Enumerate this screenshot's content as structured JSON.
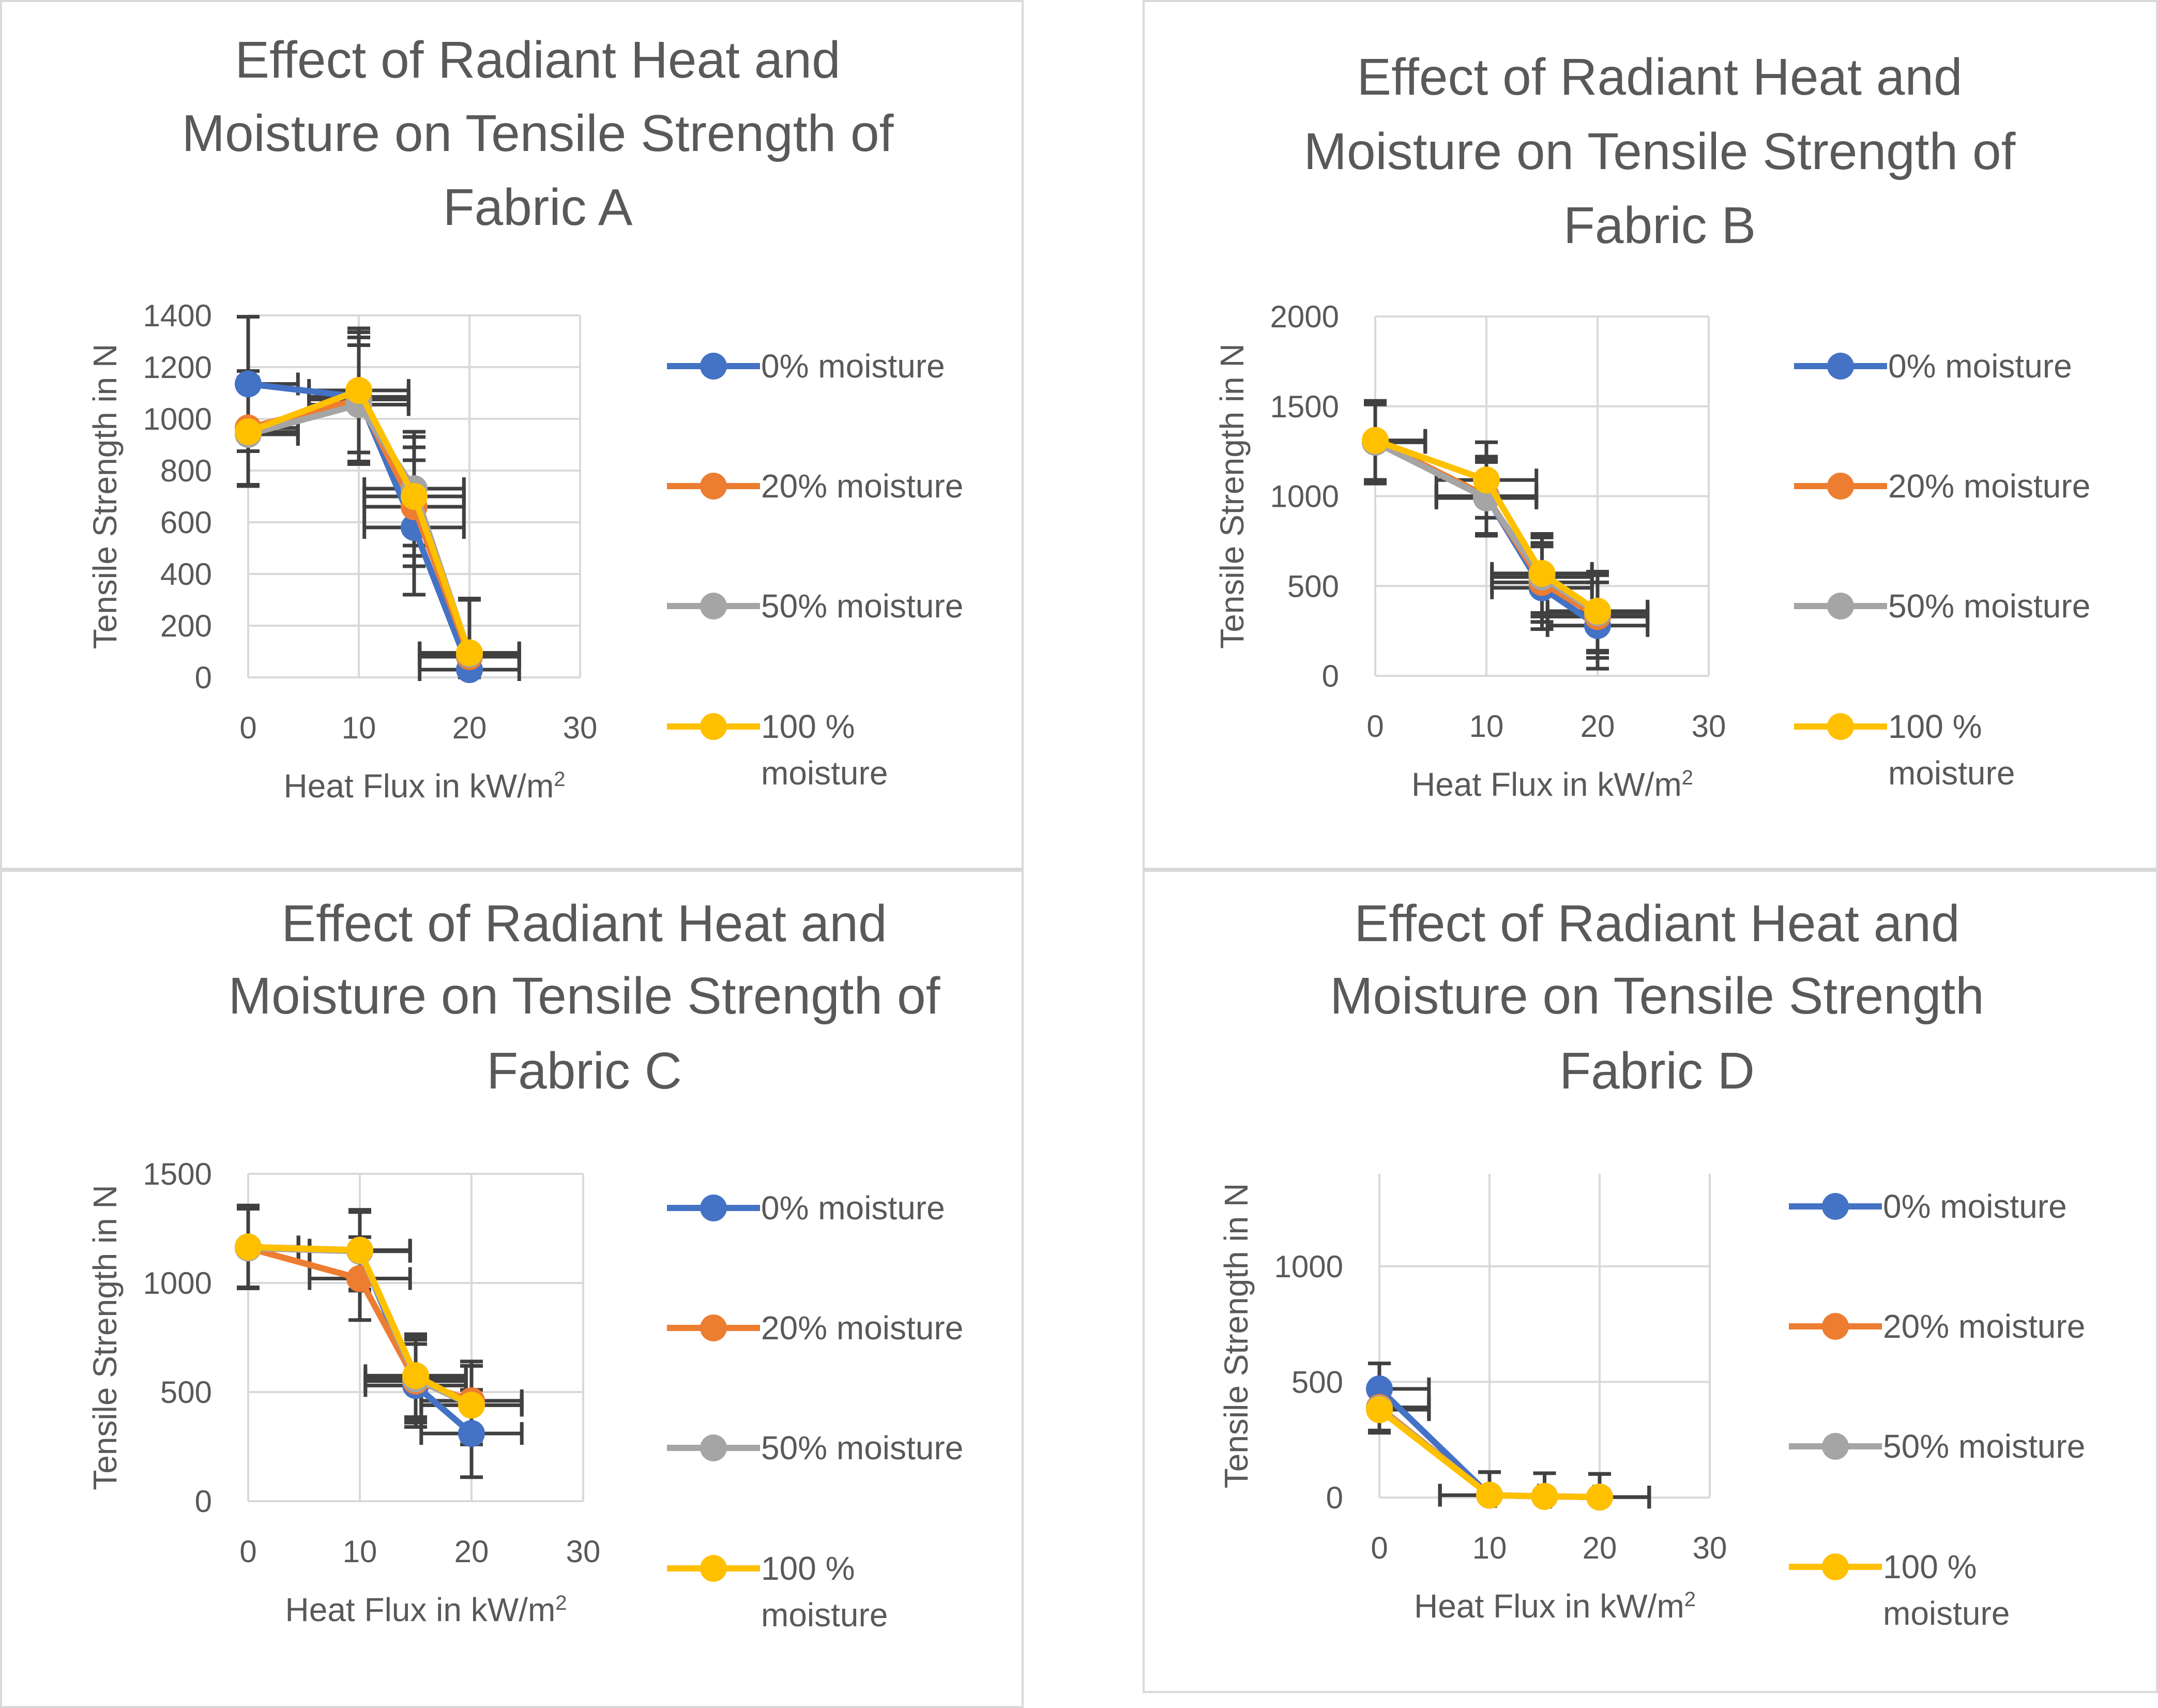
{
  "colors": {
    "moisture_0": "#4472C4",
    "moisture_20": "#ED7D31",
    "moisture_50": "#A5A5A5",
    "moisture_100": "#FFC000",
    "text": "#595959",
    "grid": "#D9D9D9",
    "errorbar": "#404040"
  },
  "chart_data": [
    {
      "type": "line",
      "title_lines": [
        "Effect of Radiant Heat and",
        "Moisture on Tensile Strength of",
        "Fabric A"
      ],
      "xlabel": "Heat Flux in kW/m",
      "xlabel_sup": "2",
      "ylabel": "Tensile Strength in N",
      "xlim": [
        0,
        30
      ],
      "ylim": [
        0,
        1400
      ],
      "xticks": [
        0,
        10,
        20,
        30
      ],
      "yticks": [
        0,
        200,
        400,
        600,
        800,
        1000,
        1200,
        1400
      ],
      "x": [
        0,
        10,
        15,
        20
      ],
      "x_error": 4.5,
      "legend_position": "right",
      "series": [
        {
          "name": "0% moisture",
          "values": [
            1135,
            1085,
            580,
            30
          ],
          "y_error": [
            260,
            250,
            260,
            270
          ]
        },
        {
          "name": "20% moisture",
          "values": [
            965,
            1075,
            660,
            80
          ],
          "y_error": [
            220,
            240,
            230,
            220
          ]
        },
        {
          "name": "50% moisture",
          "values": [
            940,
            1055,
            730,
            90
          ],
          "y_error": [
            200,
            230,
            220,
            210
          ]
        },
        {
          "name": "100 % moisture",
          "values": [
            950,
            1110,
            700,
            95
          ],
          "y_error": [
            210,
            240,
            230,
            210
          ]
        }
      ]
    },
    {
      "type": "line",
      "title_lines": [
        "Effect of Radiant Heat and",
        "Moisture on Tensile Strength of",
        "Fabric B"
      ],
      "xlabel": "Heat Flux in kW/m",
      "xlabel_sup": "2",
      "ylabel": "Tensile Strength in N",
      "xlim": [
        0,
        30
      ],
      "ylim": [
        0,
        2000
      ],
      "xticks": [
        0,
        10,
        20,
        30
      ],
      "yticks": [
        0,
        500,
        1000,
        1500,
        2000
      ],
      "x": [
        0,
        10,
        15,
        20
      ],
      "x_error": 4.5,
      "legend_position": "right",
      "series": [
        {
          "name": "0% moisture",
          "values": [
            1300,
            1000,
            490,
            280
          ],
          "y_error": [
            230,
            220,
            230,
            240
          ]
        },
        {
          "name": "20% moisture",
          "values": [
            1310,
            1000,
            520,
            330
          ],
          "y_error": [
            220,
            210,
            220,
            230
          ]
        },
        {
          "name": "50% moisture",
          "values": [
            1300,
            990,
            550,
            350
          ],
          "y_error": [
            210,
            200,
            220,
            220
          ]
        },
        {
          "name": "100 % moisture",
          "values": [
            1310,
            1090,
            570,
            360
          ],
          "y_error": [
            220,
            210,
            220,
            220
          ]
        }
      ]
    },
    {
      "type": "line",
      "title_lines": [
        "Effect of Radiant Heat and",
        "Moisture on Tensile Strength of",
        "Fabric C"
      ],
      "xlabel": "Heat Flux in kW/m",
      "xlabel_sup": "2",
      "ylabel": "Tensile Strength in N",
      "xlim": [
        0,
        30
      ],
      "ylim": [
        0,
        1500
      ],
      "xticks": [
        0,
        10,
        20,
        30
      ],
      "yticks": [
        0,
        500,
        1000,
        1500
      ],
      "x": [
        0,
        10,
        15,
        20
      ],
      "x_error": 4.5,
      "legend_position": "right",
      "series": [
        {
          "name": "0% moisture",
          "values": [
            1165,
            1150,
            530,
            310
          ],
          "y_error": [
            190,
            180,
            190,
            200
          ]
        },
        {
          "name": "20% moisture",
          "values": [
            1160,
            1020,
            550,
            460
          ],
          "y_error": [
            180,
            190,
            190,
            180
          ]
        },
        {
          "name": "50% moisture",
          "values": [
            1160,
            1145,
            560,
            440
          ],
          "y_error": [
            180,
            180,
            190,
            180
          ]
        },
        {
          "name": "100 % moisture",
          "values": [
            1165,
            1150,
            575,
            440
          ],
          "y_error": [
            185,
            185,
            190,
            180
          ]
        }
      ]
    },
    {
      "type": "line",
      "title_lines": [
        "Effect of Radiant Heat and",
        "Moisture on Tensile Strength",
        "Fabric D"
      ],
      "xlabel": "Heat Flux in kW/m",
      "xlabel_sup": "2",
      "ylabel": "Tensile Strength in N",
      "xlim": [
        0,
        30
      ],
      "ylim": [
        0,
        1400
      ],
      "xticks": [
        0,
        10,
        20,
        30
      ],
      "yticks": [
        0,
        500,
        1000
      ],
      "x": [
        0,
        10,
        15,
        20
      ],
      "x_error": 4.5,
      "legend_position": "right",
      "series": [
        {
          "name": "0% moisture",
          "values": [
            470,
            10,
            5,
            2
          ],
          "y_error": [
            110,
            100,
            100,
            100
          ]
        },
        {
          "name": "20% moisture",
          "values": [
            390,
            10,
            5,
            2
          ],
          "y_error": [
            100,
            100,
            100,
            100
          ]
        },
        {
          "name": "50% moisture",
          "values": [
            385,
            10,
            5,
            2
          ],
          "y_error": [
            100,
            100,
            100,
            100
          ]
        },
        {
          "name": "100 % moisture",
          "values": [
            380,
            10,
            5,
            2
          ],
          "y_error": [
            100,
            100,
            100,
            100
          ]
        }
      ]
    }
  ]
}
